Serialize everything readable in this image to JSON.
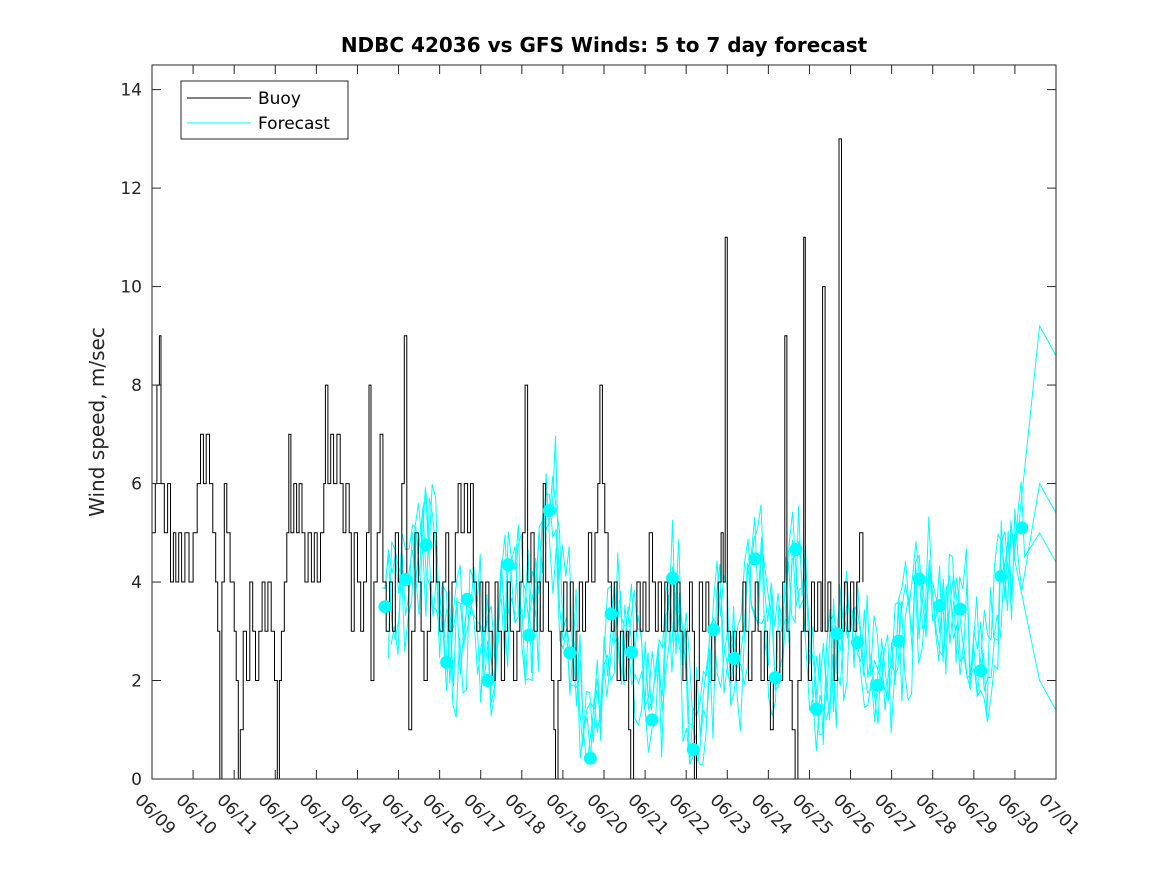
{
  "chart_data": {
    "type": "line",
    "title": "NDBC 42036 vs GFS Winds: 5 to 7 day forecast",
    "xlabel": "",
    "ylabel": "Wind speed, m/sec",
    "x_start_date": "06/09",
    "x_end_date": "07/01",
    "xticks": [
      "06/09",
      "06/10",
      "06/11",
      "06/12",
      "06/13",
      "06/14",
      "06/15",
      "06/16",
      "06/17",
      "06/18",
      "06/19",
      "06/20",
      "06/21",
      "06/22",
      "06/23",
      "06/24",
      "06/25",
      "06/26",
      "06/27",
      "06/28",
      "06/29",
      "06/30",
      "07/01"
    ],
    "ylim": [
      0,
      14.5
    ],
    "yticks": [
      0,
      2,
      4,
      6,
      8,
      10,
      12,
      14
    ],
    "grid": false,
    "legend": {
      "position": "top-left",
      "entries": [
        "Buoy",
        "Forecast"
      ]
    },
    "colors": {
      "buoy": "#000000",
      "forecast": "#00ffff",
      "axis": "#262626"
    },
    "series": [
      {
        "name": "Buoy",
        "color": "#000000",
        "style": "step-line",
        "points": [
          [
            0.0,
            5
          ],
          [
            0.08,
            6
          ],
          [
            0.12,
            8
          ],
          [
            0.18,
            9
          ],
          [
            0.22,
            6
          ],
          [
            0.3,
            5
          ],
          [
            0.38,
            6
          ],
          [
            0.45,
            4
          ],
          [
            0.52,
            5
          ],
          [
            0.58,
            4
          ],
          [
            0.65,
            5
          ],
          [
            0.72,
            4
          ],
          [
            0.8,
            5
          ],
          [
            0.9,
            4
          ],
          [
            1.0,
            5
          ],
          [
            1.1,
            6
          ],
          [
            1.18,
            7
          ],
          [
            1.25,
            6
          ],
          [
            1.32,
            7
          ],
          [
            1.4,
            6
          ],
          [
            1.48,
            5
          ],
          [
            1.55,
            4
          ],
          [
            1.6,
            3
          ],
          [
            1.65,
            0
          ],
          [
            1.7,
            4
          ],
          [
            1.76,
            6
          ],
          [
            1.82,
            5
          ],
          [
            1.9,
            4
          ],
          [
            2.0,
            3
          ],
          [
            2.05,
            2
          ],
          [
            2.1,
            0
          ],
          [
            2.15,
            1
          ],
          [
            2.22,
            3
          ],
          [
            2.3,
            2
          ],
          [
            2.38,
            4
          ],
          [
            2.45,
            3
          ],
          [
            2.52,
            2
          ],
          [
            2.6,
            3
          ],
          [
            2.68,
            4
          ],
          [
            2.75,
            3
          ],
          [
            2.82,
            4
          ],
          [
            2.9,
            3
          ],
          [
            2.98,
            2
          ],
          [
            3.05,
            0
          ],
          [
            3.1,
            2
          ],
          [
            3.15,
            3
          ],
          [
            3.22,
            4
          ],
          [
            3.28,
            5
          ],
          [
            3.33,
            7
          ],
          [
            3.38,
            5
          ],
          [
            3.45,
            6
          ],
          [
            3.52,
            5
          ],
          [
            3.58,
            6
          ],
          [
            3.65,
            5
          ],
          [
            3.72,
            4
          ],
          [
            3.8,
            5
          ],
          [
            3.88,
            4
          ],
          [
            3.95,
            5
          ],
          [
            4.02,
            4
          ],
          [
            4.1,
            5
          ],
          [
            4.18,
            6
          ],
          [
            4.22,
            8
          ],
          [
            4.28,
            6
          ],
          [
            4.35,
            7
          ],
          [
            4.42,
            6
          ],
          [
            4.5,
            7
          ],
          [
            4.58,
            6
          ],
          [
            4.65,
            5
          ],
          [
            4.72,
            6
          ],
          [
            4.8,
            5
          ],
          [
            4.85,
            3
          ],
          [
            4.92,
            5
          ],
          [
            5.0,
            4
          ],
          [
            5.08,
            3
          ],
          [
            5.15,
            4
          ],
          [
            5.22,
            5
          ],
          [
            5.28,
            8
          ],
          [
            5.33,
            2
          ],
          [
            5.4,
            4
          ],
          [
            5.48,
            5
          ],
          [
            5.55,
            7
          ],
          [
            5.62,
            4
          ],
          [
            5.7,
            3
          ],
          [
            5.78,
            4
          ],
          [
            5.85,
            3
          ],
          [
            5.92,
            5
          ],
          [
            6.0,
            4
          ],
          [
            6.08,
            6
          ],
          [
            6.14,
            9
          ],
          [
            6.2,
            4
          ],
          [
            6.25,
            1
          ],
          [
            6.32,
            3
          ],
          [
            6.4,
            5
          ],
          [
            6.48,
            4
          ],
          [
            6.55,
            3
          ],
          [
            6.62,
            2
          ],
          [
            6.7,
            3
          ],
          [
            6.78,
            4
          ],
          [
            6.85,
            5
          ],
          [
            6.92,
            4
          ],
          [
            7.0,
            3
          ],
          [
            7.08,
            4
          ],
          [
            7.15,
            5
          ],
          [
            7.22,
            3
          ],
          [
            7.3,
            4
          ],
          [
            7.38,
            5
          ],
          [
            7.45,
            6
          ],
          [
            7.52,
            5
          ],
          [
            7.6,
            6
          ],
          [
            7.68,
            5
          ],
          [
            7.75,
            6
          ],
          [
            7.82,
            4
          ],
          [
            7.9,
            3
          ],
          [
            7.98,
            4
          ],
          [
            8.05,
            3
          ],
          [
            8.12,
            4
          ],
          [
            8.2,
            3
          ],
          [
            8.28,
            2
          ],
          [
            8.35,
            4
          ],
          [
            8.42,
            3
          ],
          [
            8.5,
            2
          ],
          [
            8.58,
            3
          ],
          [
            8.65,
            4
          ],
          [
            8.72,
            3
          ],
          [
            8.8,
            2
          ],
          [
            8.88,
            3
          ],
          [
            8.95,
            4
          ],
          [
            9.02,
            5
          ],
          [
            9.08,
            8
          ],
          [
            9.14,
            4
          ],
          [
            9.22,
            5
          ],
          [
            9.3,
            3
          ],
          [
            9.38,
            4
          ],
          [
            9.45,
            3
          ],
          [
            9.52,
            6
          ],
          [
            9.58,
            4
          ],
          [
            9.65,
            3
          ],
          [
            9.72,
            2
          ],
          [
            9.78,
            1
          ],
          [
            9.82,
            0
          ],
          [
            9.88,
            2
          ],
          [
            9.95,
            3
          ],
          [
            10.02,
            4
          ],
          [
            10.1,
            3
          ],
          [
            10.18,
            4
          ],
          [
            10.25,
            2
          ],
          [
            10.32,
            3
          ],
          [
            10.4,
            4
          ],
          [
            10.48,
            3
          ],
          [
            10.55,
            4
          ],
          [
            10.62,
            5
          ],
          [
            10.7,
            4
          ],
          [
            10.78,
            5
          ],
          [
            10.85,
            6
          ],
          [
            10.9,
            8
          ],
          [
            10.96,
            6
          ],
          [
            11.02,
            5
          ],
          [
            11.1,
            4
          ],
          [
            11.18,
            3
          ],
          [
            11.25,
            4
          ],
          [
            11.32,
            2
          ],
          [
            11.4,
            3
          ],
          [
            11.48,
            2
          ],
          [
            11.55,
            3
          ],
          [
            11.6,
            1
          ],
          [
            11.65,
            0
          ],
          [
            11.72,
            3
          ],
          [
            11.8,
            4
          ],
          [
            11.88,
            3
          ],
          [
            11.95,
            4
          ],
          [
            12.02,
            3
          ],
          [
            12.1,
            5
          ],
          [
            12.18,
            4
          ],
          [
            12.25,
            3
          ],
          [
            12.32,
            4
          ],
          [
            12.4,
            3
          ],
          [
            12.48,
            4
          ],
          [
            12.55,
            3
          ],
          [
            12.62,
            4
          ],
          [
            12.7,
            3
          ],
          [
            12.78,
            4
          ],
          [
            12.85,
            3
          ],
          [
            12.92,
            2
          ],
          [
            13.0,
            3
          ],
          [
            13.08,
            4
          ],
          [
            13.15,
            3
          ],
          [
            13.2,
            0
          ],
          [
            13.25,
            2
          ],
          [
            13.32,
            4
          ],
          [
            13.4,
            3
          ],
          [
            13.48,
            4
          ],
          [
            13.55,
            3
          ],
          [
            13.62,
            2
          ],
          [
            13.7,
            3
          ],
          [
            13.78,
            4
          ],
          [
            13.85,
            5
          ],
          [
            13.9,
            4
          ],
          [
            13.95,
            11
          ],
          [
            14.0,
            3
          ],
          [
            14.08,
            2
          ],
          [
            14.15,
            3
          ],
          [
            14.22,
            2
          ],
          [
            14.3,
            3
          ],
          [
            14.38,
            4
          ],
          [
            14.45,
            3
          ],
          [
            14.52,
            2
          ],
          [
            14.6,
            3
          ],
          [
            14.68,
            4
          ],
          [
            14.75,
            3
          ],
          [
            14.82,
            2
          ],
          [
            14.9,
            3
          ],
          [
            14.98,
            2
          ],
          [
            15.05,
            1
          ],
          [
            15.12,
            2
          ],
          [
            15.2,
            3
          ],
          [
            15.28,
            2
          ],
          [
            15.35,
            4
          ],
          [
            15.4,
            9
          ],
          [
            15.45,
            3
          ],
          [
            15.52,
            2
          ],
          [
            15.58,
            1
          ],
          [
            15.65,
            0
          ],
          [
            15.72,
            2
          ],
          [
            15.8,
            3
          ],
          [
            15.86,
            11
          ],
          [
            15.9,
            3
          ],
          [
            15.98,
            2
          ],
          [
            16.05,
            4
          ],
          [
            16.12,
            3
          ],
          [
            16.2,
            4
          ],
          [
            16.28,
            3
          ],
          [
            16.32,
            10
          ],
          [
            16.38,
            3
          ],
          [
            16.45,
            4
          ],
          [
            16.52,
            3
          ],
          [
            16.6,
            2
          ],
          [
            16.68,
            3
          ],
          [
            16.72,
            13
          ],
          [
            16.78,
            3
          ],
          [
            16.85,
            4
          ],
          [
            16.92,
            3
          ],
          [
            17.0,
            4
          ],
          [
            17.08,
            3
          ],
          [
            17.15,
            4
          ],
          [
            17.22,
            5
          ],
          [
            17.3,
            4
          ]
        ]
      },
      {
        "name": "Forecast",
        "color": "#00ffff",
        "style": "lines-and-markers",
        "markers": [
          [
            5.67,
            3.5
          ],
          [
            6.17,
            4.05
          ],
          [
            6.67,
            4.75
          ],
          [
            7.17,
            2.37
          ],
          [
            7.67,
            3.65
          ],
          [
            8.17,
            2.0
          ],
          [
            8.67,
            4.35
          ],
          [
            9.17,
            2.92
          ],
          [
            9.67,
            5.45
          ],
          [
            10.17,
            2.56
          ],
          [
            10.67,
            0.42
          ],
          [
            11.17,
            3.35
          ],
          [
            11.67,
            2.57
          ],
          [
            12.17,
            1.2
          ],
          [
            12.67,
            4.08
          ],
          [
            13.17,
            0.6
          ],
          [
            13.67,
            3.03
          ],
          [
            14.17,
            2.45
          ],
          [
            14.67,
            4.47
          ],
          [
            15.17,
            2.06
          ],
          [
            15.67,
            4.66
          ],
          [
            16.17,
            1.42
          ],
          [
            16.67,
            2.95
          ],
          [
            17.17,
            2.77
          ],
          [
            17.67,
            1.9
          ],
          [
            18.17,
            2.8
          ],
          [
            18.67,
            4.06
          ],
          [
            19.17,
            3.52
          ],
          [
            19.67,
            3.45
          ],
          [
            20.17,
            2.2
          ],
          [
            20.67,
            4.12
          ],
          [
            21.17,
            5.1
          ]
        ]
      }
    ]
  }
}
